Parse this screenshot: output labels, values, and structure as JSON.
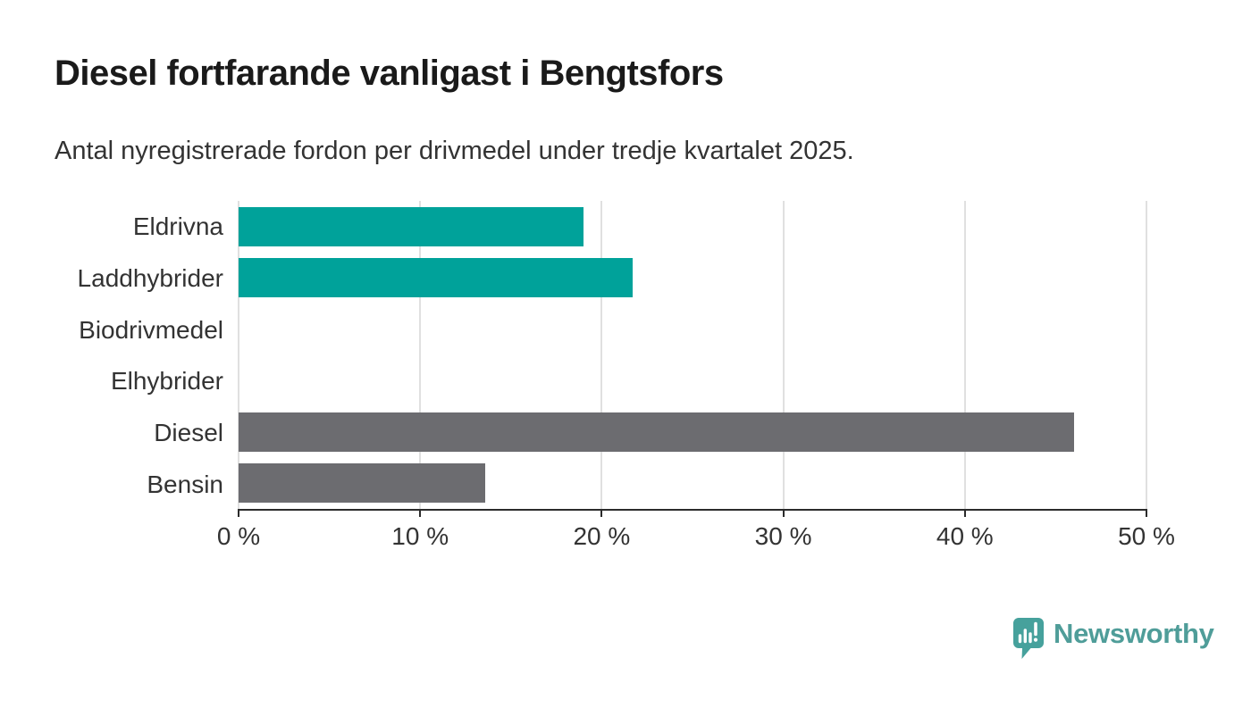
{
  "title": "Diesel fortfarande vanligast i Bengtsfors",
  "subtitle": "Antal nyregistrerade fordon per drivmedel under tredje kvartalet 2025.",
  "chart_data": {
    "type": "bar",
    "orientation": "horizontal",
    "categories": [
      "Eldrivna",
      "Laddhybrider",
      "Biodrivmedel",
      "Elhybrider",
      "Diesel",
      "Bensin"
    ],
    "values": [
      19,
      21.7,
      0,
      0,
      46,
      13.6
    ],
    "unit": "%",
    "xlim": [
      0,
      50
    ],
    "x_tick_labels": [
      "0 %",
      "10 %",
      "20 %",
      "30 %",
      "40 %",
      "50 %"
    ],
    "bar_colors": [
      "#00A29A",
      "#00A29A",
      "#00A29A",
      "#00A29A",
      "#6C6C70",
      "#6C6C70"
    ],
    "grid": "vertical-gridlines-every-10",
    "legend": "none",
    "title": "Diesel fortfarande vanligast i Bengtsfors",
    "xlabel": "",
    "ylabel": ""
  },
  "colors": {
    "teal": "#00A29A",
    "bar_gray": "#6C6C70",
    "title_text": "#1a1a1a",
    "body_text": "#333333",
    "grid": "#e0e0e0",
    "axis": "#2b2b2b",
    "logo_teal": "#4F9D99",
    "logo_icon_teal": "#46A19C"
  },
  "branding": {
    "logo_text": "Newsworthy",
    "logo_icon": "bar-chart-speech-bubble-icon"
  }
}
